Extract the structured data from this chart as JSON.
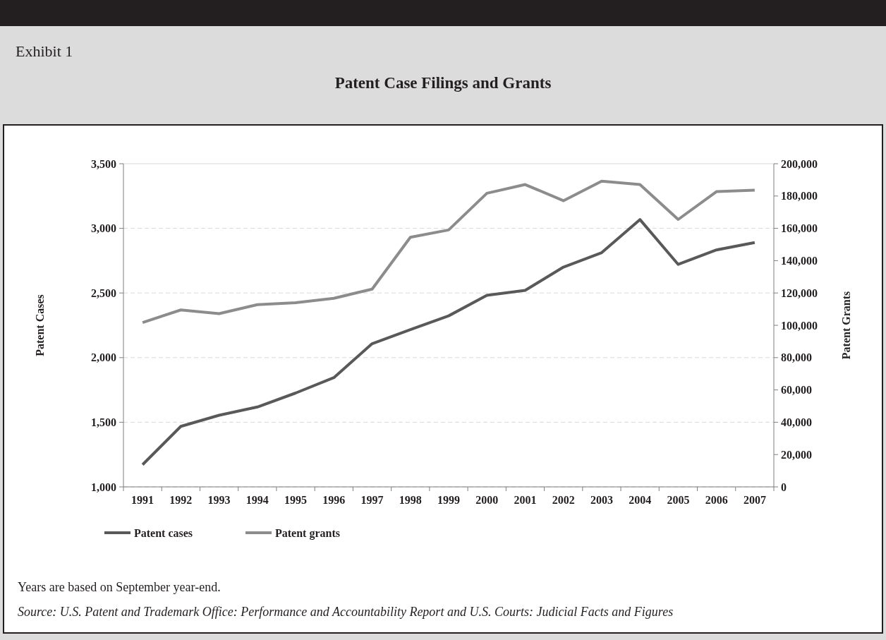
{
  "chart_data": {
    "type": "line",
    "subtitle": "Exhibit 1",
    "title": "Patent Case Filings and Grants",
    "ylabel": "Patent Cases",
    "y2label": "Patent Grants",
    "categories": [
      "1991",
      "1992",
      "1993",
      "1994",
      "1995",
      "1996",
      "1997",
      "1998",
      "1999",
      "2000",
      "2001",
      "2002",
      "2003",
      "2004",
      "2005",
      "2006",
      "2007"
    ],
    "series": [
      {
        "name": "Patent cases",
        "color": "#595959",
        "values": [
          1172,
          1468,
          1554,
          1618,
          1726,
          1845,
          2108,
          2216,
          2323,
          2482,
          2520,
          2700,
          2812,
          3068,
          2721,
          2833,
          2890
        ]
      },
      {
        "name": "Patent grants",
        "color": "#8c8c8c",
        "axis": "y2",
        "values": [
          101700,
          109500,
          107200,
          112800,
          114000,
          116700,
          122400,
          154500,
          159000,
          181700,
          187100,
          177100,
          189200,
          187100,
          165500,
          182700,
          183600
        ]
      }
    ],
    "ylim": [
      1000,
      3500
    ],
    "yticks": [
      {
        "value": 1000,
        "label": "1,000"
      },
      {
        "value": 1500,
        "label": "1,500"
      },
      {
        "value": 2000,
        "label": "2,000"
      },
      {
        "value": 2500,
        "label": "2,500"
      },
      {
        "value": 3000,
        "label": "3,000"
      },
      {
        "value": 3500,
        "label": "3,500"
      }
    ],
    "y2lim": [
      0,
      200000
    ],
    "y2ticks": [
      0,
      {
        "value": 20000,
        "label": "20,000"
      },
      {
        "value": 40000,
        "label": "40,000"
      },
      {
        "value": 60000,
        "label": "60,000"
      },
      {
        "value": 80000,
        "label": "80,000"
      },
      {
        "value": 100000,
        "label": "100,000"
      },
      {
        "value": 120000,
        "label": "120,000"
      },
      {
        "value": 140000,
        "label": "140,000"
      },
      {
        "value": 160000,
        "label": "160,000"
      },
      {
        "value": 180000,
        "label": "180,000"
      },
      {
        "value": 200000,
        "label": "200,000"
      }
    ],
    "grid": "y",
    "legend": "bottom",
    "marker": "none",
    "line_style": "solid",
    "annotations": [
      "Years are based on September year-end.",
      "Source: U.S. Patent and Trademark Office: Performance and Accountability Report and U.S. Courts: Judicial Facts and Figures"
    ]
  }
}
